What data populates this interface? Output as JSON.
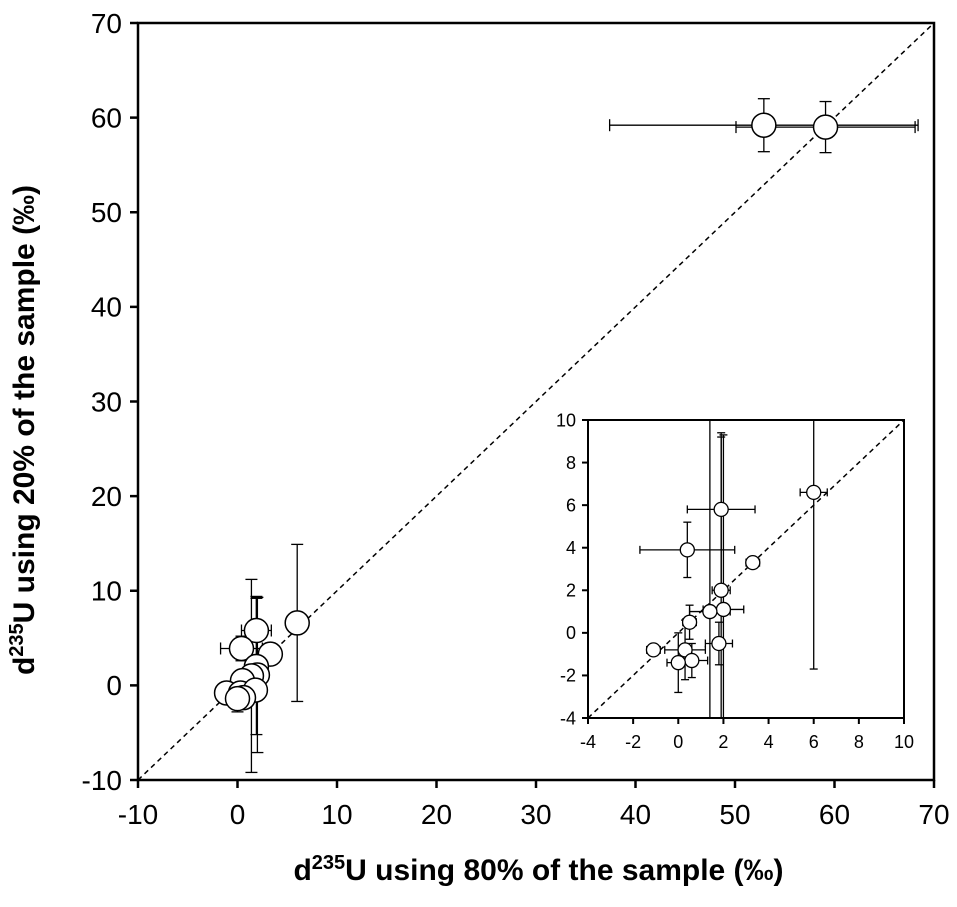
{
  "chart_data": [
    {
      "type": "scatter",
      "name": "main",
      "xlabel": {
        "prefix": "d",
        "sup": "235",
        "rest": "U using 80% of the sample (‰)"
      },
      "ylabel": {
        "prefix": "d",
        "sup": "235",
        "rest": "U using 20% of the sample (‰)"
      },
      "xlim": [
        -10,
        70
      ],
      "ylim": [
        -10,
        70
      ],
      "xticks": [
        "-10",
        "0",
        "10",
        "20",
        "30",
        "40",
        "50",
        "60",
        "70"
      ],
      "yticks": [
        "-10",
        "0",
        "10",
        "20",
        "30",
        "40",
        "50",
        "60",
        "70"
      ],
      "grid": false,
      "reference_line": "1:1 dashed",
      "points": [
        {
          "x": 52.9,
          "y": 59.2,
          "xerr": 15.5,
          "yerr": 2.8
        },
        {
          "x": 59.1,
          "y": 59.0,
          "xerr": 9.0,
          "yerr": 2.7
        },
        {
          "x": 6.0,
          "y": 6.6,
          "xerr": 0.6,
          "yerr": 8.3
        },
        {
          "x": 1.9,
          "y": 5.8,
          "xerr": 1.5,
          "yerr": 3.6
        },
        {
          "x": 0.4,
          "y": 3.9,
          "xerr": 2.1,
          "yerr": 1.3
        },
        {
          "x": 3.3,
          "y": 3.3,
          "xerr": 0.3,
          "yerr": 0.2
        },
        {
          "x": 1.9,
          "y": 2.0,
          "xerr": 0.4,
          "yerr": 7.2
        },
        {
          "x": 2.0,
          "y": 1.1,
          "xerr": 0.9,
          "yerr": 8.2
        },
        {
          "x": 1.4,
          "y": 1.0,
          "xerr": 0.9,
          "yerr": 10.2
        },
        {
          "x": 0.5,
          "y": 0.5,
          "xerr": 0.3,
          "yerr": 0.8
        },
        {
          "x": -1.1,
          "y": -0.8,
          "xerr": 0.3,
          "yerr": 0.2
        },
        {
          "x": 0.3,
          "y": -0.8,
          "xerr": 0.9,
          "yerr": 1.4
        },
        {
          "x": 1.8,
          "y": -0.5,
          "xerr": 0.6,
          "yerr": 1.0
        },
        {
          "x": 0.6,
          "y": -1.3,
          "xerr": 0.7,
          "yerr": 0.8
        },
        {
          "x": 0.0,
          "y": -1.4,
          "xerr": 0.5,
          "yerr": 1.4
        }
      ]
    },
    {
      "type": "scatter",
      "name": "inset",
      "xlim": [
        -4,
        10
      ],
      "ylim": [
        -4,
        10
      ],
      "xticks": [
        "-4",
        "-2",
        "0",
        "2",
        "4",
        "6",
        "8",
        "10"
      ],
      "yticks": [
        "-4",
        "-2",
        "0",
        "2",
        "4",
        "6",
        "8",
        "10"
      ],
      "grid": false,
      "reference_line": "1:1 dashed",
      "points": [
        {
          "x": 6.0,
          "y": 6.6,
          "xerr": 0.6,
          "yerr": 8.3
        },
        {
          "x": 1.9,
          "y": 5.8,
          "xerr": 1.5,
          "yerr": 3.6
        },
        {
          "x": 0.4,
          "y": 3.9,
          "xerr": 2.1,
          "yerr": 1.3
        },
        {
          "x": 3.3,
          "y": 3.3,
          "xerr": 0.3,
          "yerr": 0.2
        },
        {
          "x": 1.9,
          "y": 2.0,
          "xerr": 0.4,
          "yerr": 7.2
        },
        {
          "x": 2.0,
          "y": 1.1,
          "xerr": 0.9,
          "yerr": 8.2
        },
        {
          "x": 1.4,
          "y": 1.0,
          "xerr": 0.9,
          "yerr": 10.2
        },
        {
          "x": 0.5,
          "y": 0.5,
          "xerr": 0.3,
          "yerr": 0.8
        },
        {
          "x": -1.1,
          "y": -0.8,
          "xerr": 0.3,
          "yerr": 0.2
        },
        {
          "x": 0.3,
          "y": -0.8,
          "xerr": 0.9,
          "yerr": 1.4
        },
        {
          "x": 1.8,
          "y": -0.5,
          "xerr": 0.6,
          "yerr": 1.0
        },
        {
          "x": 0.6,
          "y": -1.3,
          "xerr": 0.7,
          "yerr": 0.8
        },
        {
          "x": 0.0,
          "y": -1.4,
          "xerr": 0.5,
          "yerr": 1.4
        }
      ]
    }
  ]
}
